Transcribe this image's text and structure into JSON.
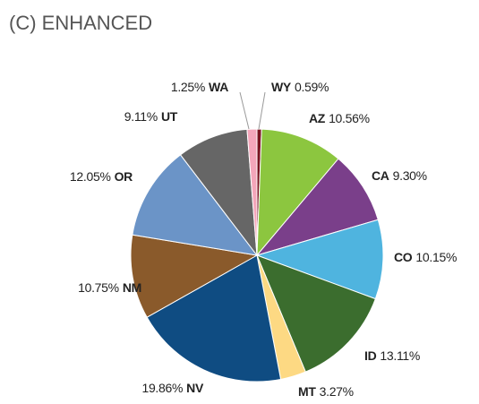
{
  "chart_data": {
    "type": "pie",
    "title": "(C) ENHANCED",
    "categories": [
      "WY",
      "AZ",
      "CA",
      "CO",
      "ID",
      "MT",
      "NV",
      "NM",
      "OR",
      "UT",
      "WA"
    ],
    "values": [
      0.59,
      10.56,
      9.3,
      10.15,
      13.11,
      3.27,
      19.86,
      10.75,
      12.05,
      9.11,
      1.25
    ],
    "value_labels": [
      "0.59%",
      "10.56%",
      "9.30%",
      "10.15%",
      "13.11%",
      "3.27%",
      "19.86%",
      "10.75%",
      "12.05%",
      "9.11%",
      "1.25%"
    ],
    "colors": [
      "#7a1420",
      "#8cc63f",
      "#7a3f8a",
      "#4fb4df",
      "#3b6d2e",
      "#fdd983",
      "#0f4c82",
      "#8a5a2b",
      "#6b94c7",
      "#666666",
      "#f4a6ba"
    ]
  }
}
